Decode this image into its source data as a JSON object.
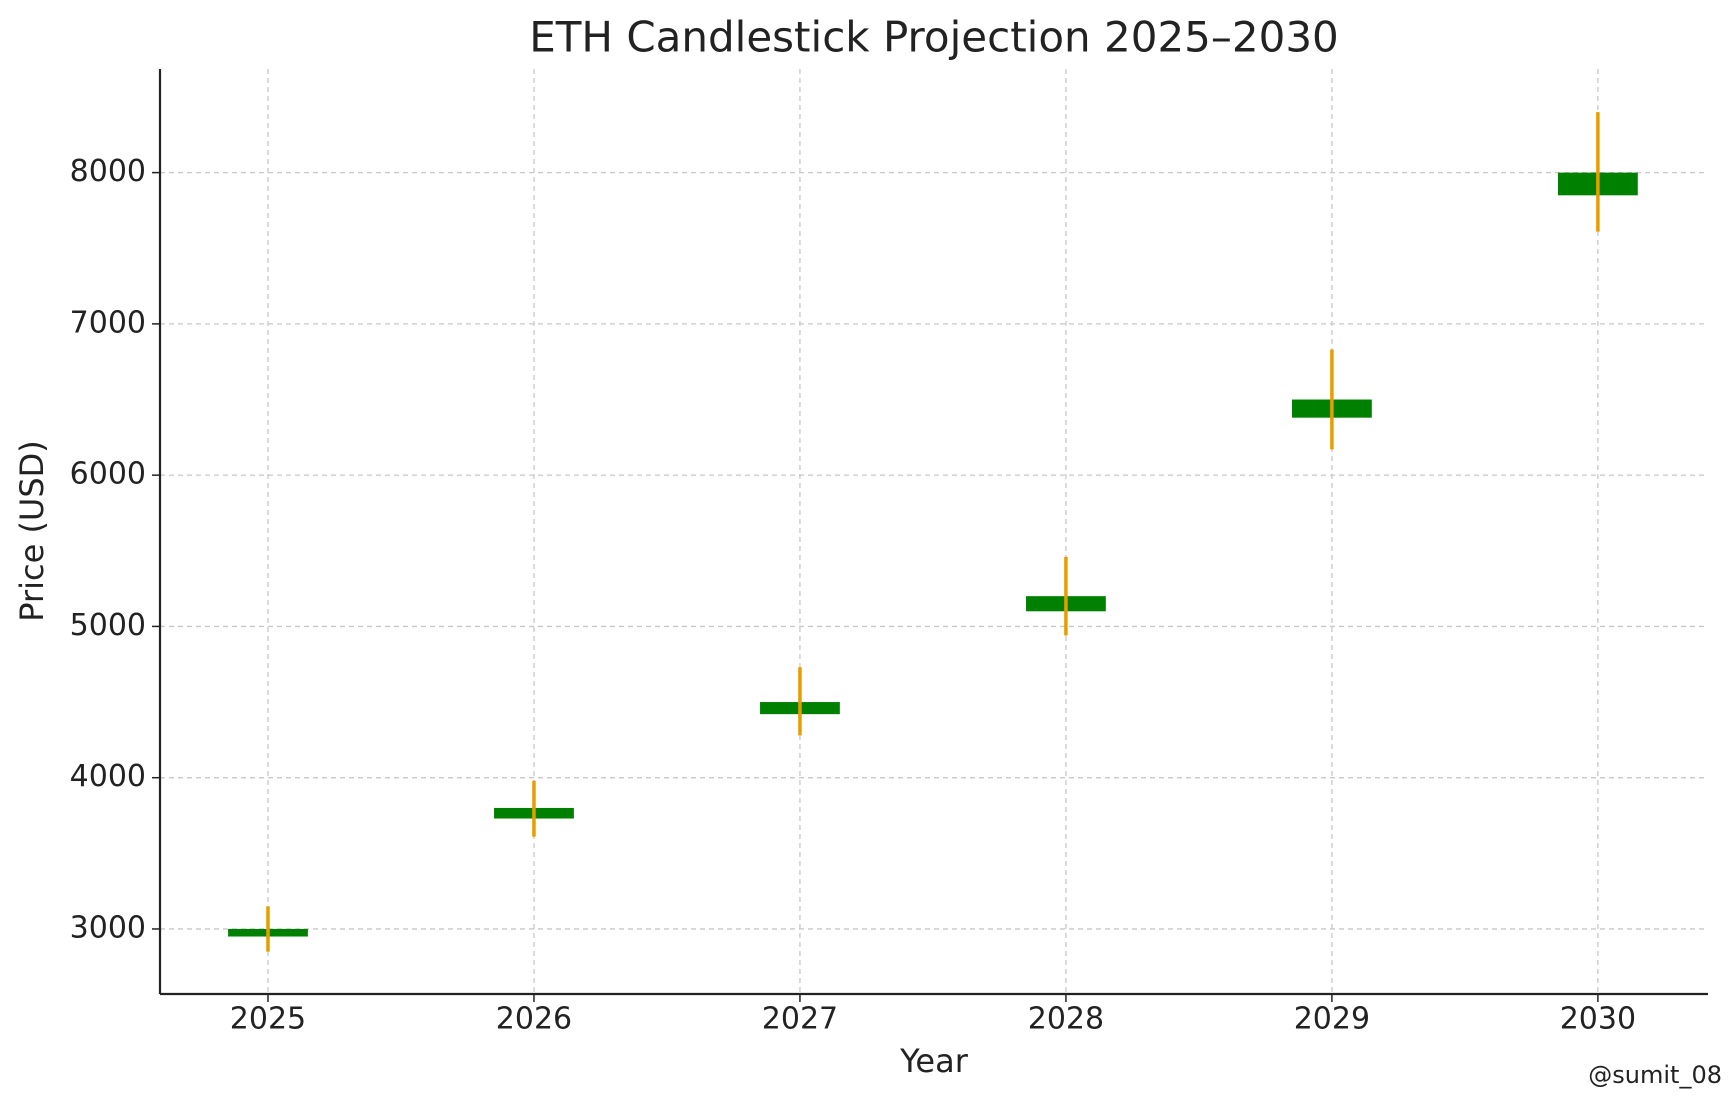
{
  "chart_data": {
    "type": "candlestick",
    "title": "ETH Candlestick Projection 2025–2030",
    "x_label": "Year",
    "y_label": "Price (USD)",
    "x": [
      2025,
      2026,
      2027,
      2028,
      2029,
      2030
    ],
    "open": [
      2950,
      3730,
      4420,
      5100,
      6380,
      7850
    ],
    "close": [
      3000,
      3800,
      4500,
      5200,
      6500,
      8000
    ],
    "high": [
      3150,
      3980,
      4730,
      5460,
      6830,
      8400
    ],
    "low": [
      2850,
      3610,
      4280,
      4940,
      6170,
      7610
    ],
    "body_color": "#008000",
    "wick_color": "#e59e00",
    "xlim": [
      2024.594,
      2030.414
    ],
    "xticks": [
      2025,
      2026,
      2027,
      2028,
      2029,
      2030
    ],
    "ylim": [
      2570,
      8685
    ],
    "yticks": [
      3000,
      4000,
      5000,
      6000,
      7000,
      8000
    ],
    "grid": true,
    "watermark": "@sumit_08"
  }
}
